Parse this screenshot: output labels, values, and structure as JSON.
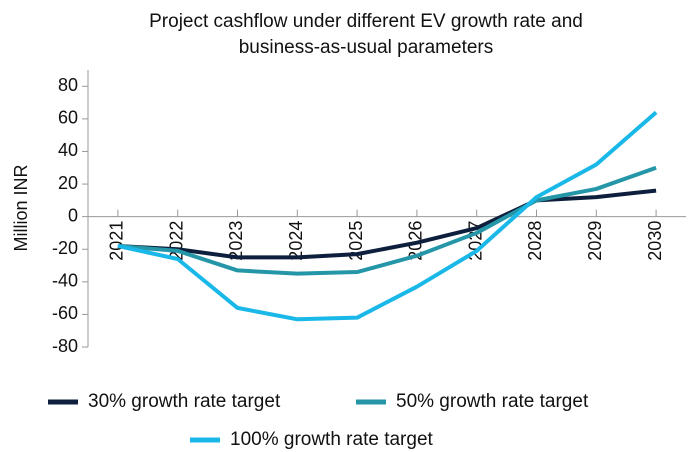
{
  "chart_data": {
    "type": "line",
    "title": [
      "Project cashflow under different EV growth rate and",
      "business-as-usual parameters"
    ],
    "y_label": "Million INR",
    "categories": [
      "2021",
      "2022",
      "2023",
      "2024",
      "2025",
      "2026",
      "2027",
      "2028",
      "2029",
      "2030"
    ],
    "series": [
      {
        "name": "30% growth rate target",
        "color": "#0d1f3c",
        "values": [
          -18,
          -20,
          -25,
          -25,
          -23,
          -16,
          -7,
          10,
          12,
          16
        ]
      },
      {
        "name": "50% growth rate target",
        "color": "#2596a8",
        "values": [
          -18,
          -21,
          -33,
          -35,
          -34,
          -24,
          -10,
          10,
          17,
          30
        ]
      },
      {
        "name": "100% growth rate target",
        "color": "#1ab8e8",
        "values": [
          -18,
          -26,
          -56,
          -63,
          -62,
          -43,
          -21,
          12,
          32,
          64
        ]
      }
    ],
    "ylim": [
      -80,
      90
    ],
    "yticks": [
      -80,
      -60,
      -40,
      -20,
      0,
      20,
      40,
      60,
      80
    ],
    "grid": false
  }
}
